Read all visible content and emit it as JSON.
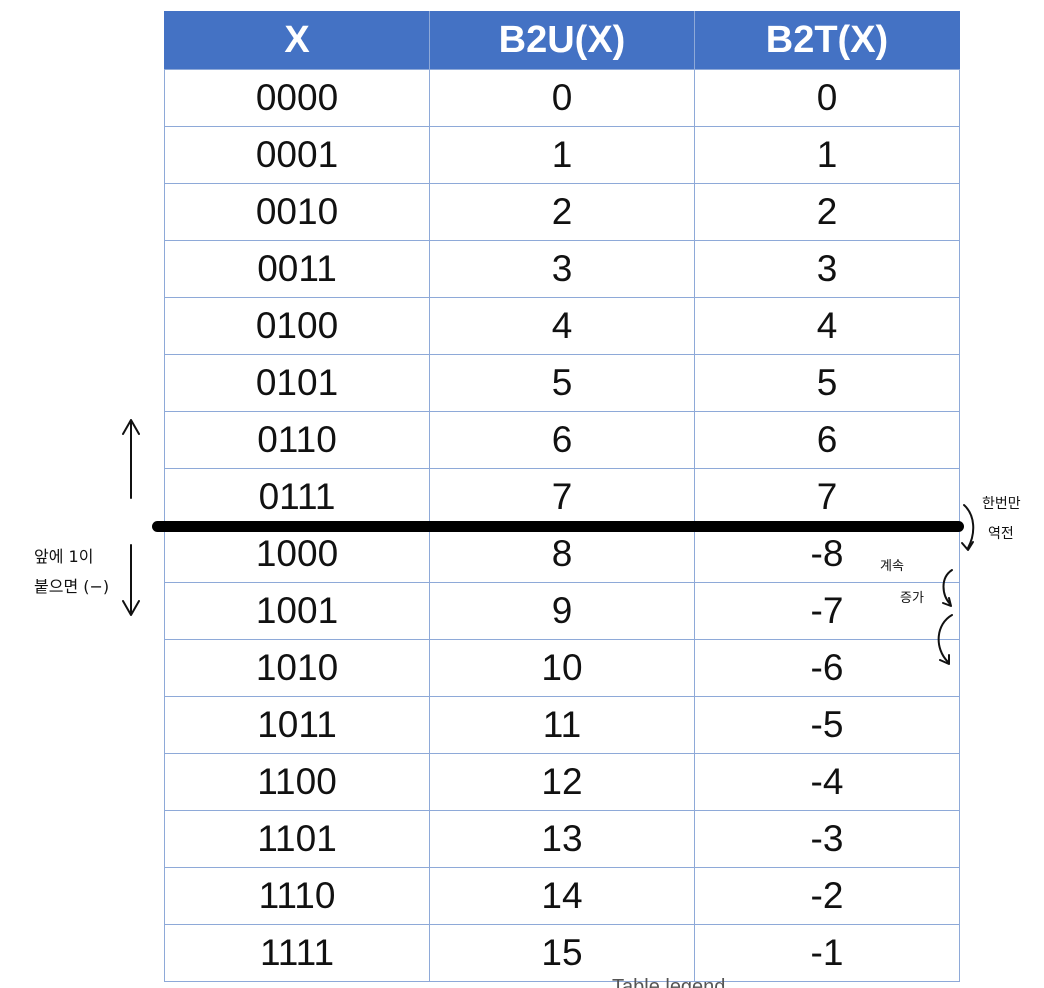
{
  "table": {
    "headers": [
      "X",
      "B2U(X)",
      "B2T(X)"
    ],
    "rows": [
      [
        "0000",
        "0",
        "0"
      ],
      [
        "0001",
        "1",
        "1"
      ],
      [
        "0010",
        "2",
        "2"
      ],
      [
        "0011",
        "3",
        "3"
      ],
      [
        "0100",
        "4",
        "4"
      ],
      [
        "0101",
        "5",
        "5"
      ],
      [
        "0110",
        "6",
        "6"
      ],
      [
        "0111",
        "7",
        "7"
      ],
      [
        "1000",
        "8",
        "-8"
      ],
      [
        "1001",
        "9",
        "-7"
      ],
      [
        "1010",
        "10",
        "-6"
      ],
      [
        "1011",
        "11",
        "-5"
      ],
      [
        "1100",
        "12",
        "-4"
      ],
      [
        "1101",
        "13",
        "-3"
      ],
      [
        "1110",
        "14",
        "-2"
      ],
      [
        "1111",
        "15",
        "-1"
      ]
    ],
    "header_color": "#4472c4",
    "grid_color": "#8ea9d8"
  },
  "annotations": {
    "left_note_line1": "앞에 1이",
    "left_note_line2": "붙으면 (−)",
    "right_note_line1": "한번만",
    "right_note_line2": "역전",
    "right_note2_line1": "계속",
    "right_note2_line2": "증가",
    "bottom_caption": "Table legend"
  }
}
